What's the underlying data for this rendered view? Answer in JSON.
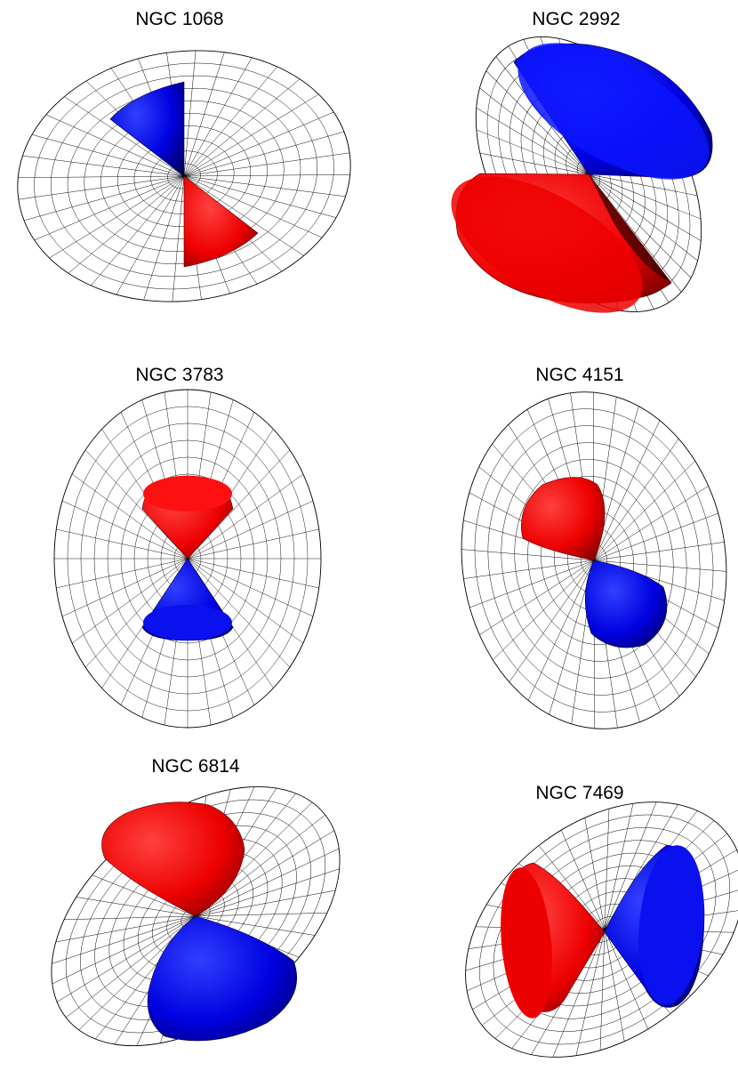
{
  "colors": {
    "approaching_cone": "#ff0000",
    "receding_cone": "#0000ff",
    "grid_line": "#000000",
    "background": "#ffffff"
  },
  "panels": [
    {
      "title": "NGC 1068"
    },
    {
      "title": "NGC 2992"
    },
    {
      "title": "NGC 3783"
    },
    {
      "title": "NGC 4151"
    },
    {
      "title": "NGC 6814"
    },
    {
      "title": "NGC 7469"
    }
  ]
}
